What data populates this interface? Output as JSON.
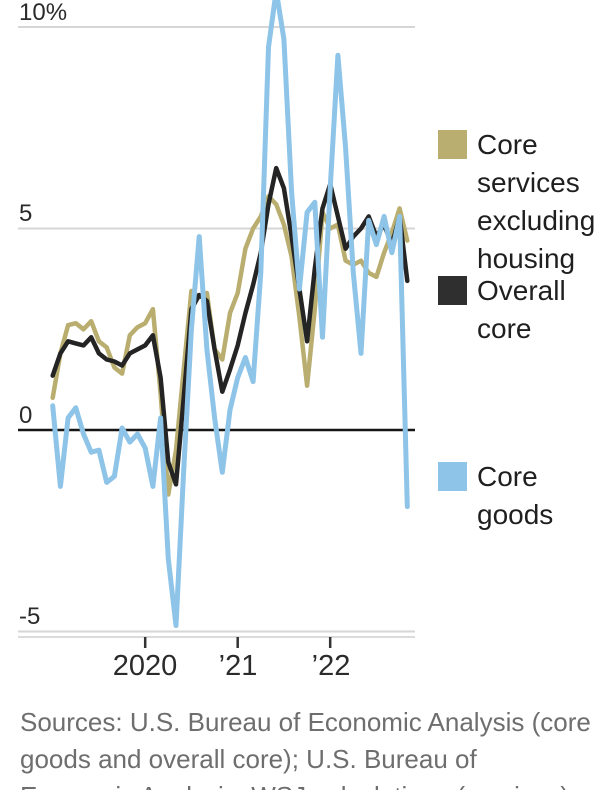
{
  "chart_data": {
    "type": "line",
    "title": "",
    "ylabel": "",
    "xlabel": "",
    "unit": "percent",
    "grid": "horizontal",
    "legend_position": "right",
    "ylim": [
      -5.2,
      10.7
    ],
    "months": [
      "Jan 2019",
      "Feb 2019",
      "Mar 2019",
      "Apr 2019",
      "May 2019",
      "Jun 2019",
      "Jul 2019",
      "Aug 2019",
      "Sep 2019",
      "Oct 2019",
      "Nov 2019",
      "Dec 2019",
      "Jan 2020",
      "Feb 2020",
      "Mar 2020",
      "Apr 2020",
      "May 2020",
      "Jun 2020",
      "Jul 2020",
      "Aug 2020",
      "Sep 2020",
      "Oct 2020",
      "Nov 2020",
      "Dec 2020",
      "Jan 2021",
      "Feb 2021",
      "Mar 2021",
      "Apr 2021",
      "May 2021",
      "Jun 2021",
      "Jul 2021",
      "Aug 2021",
      "Sep 2021",
      "Oct 2021",
      "Nov 2021",
      "Dec 2021",
      "Jan 2022",
      "Feb 2022",
      "Mar 2022",
      "Apr 2022",
      "May 2022",
      "Jun 2022",
      "Jul 2022",
      "Aug 2022",
      "Sep 2022",
      "Oct 2022",
      "Nov 2022"
    ],
    "series": [
      {
        "name": "Core services excluding housing",
        "color": "#b9ae6f",
        "stroke_width": 4.5,
        "values": [
          0.8,
          1.9,
          2.6,
          2.65,
          2.5,
          2.7,
          2.2,
          2.05,
          1.55,
          1.4,
          2.35,
          2.55,
          2.65,
          3.0,
          0.9,
          -1.6,
          -0.5,
          1.5,
          3.45,
          3.3,
          3.4,
          2.0,
          1.75,
          2.9,
          3.4,
          4.5,
          5.0,
          5.3,
          5.8,
          5.6,
          5.1,
          4.3,
          2.8,
          1.1,
          3.0,
          5.4,
          5.0,
          5.1,
          4.2,
          4.1,
          4.2,
          3.9,
          3.8,
          4.4,
          4.9,
          5.5,
          4.7
        ]
      },
      {
        "name": "Overall core",
        "color": "#242424",
        "stroke_width": 4.5,
        "values": [
          1.35,
          1.9,
          2.2,
          2.15,
          2.1,
          2.3,
          1.9,
          1.75,
          1.7,
          1.6,
          1.9,
          2.0,
          2.1,
          2.35,
          1.3,
          -0.8,
          -1.35,
          0.8,
          3.0,
          3.35,
          3.2,
          2.0,
          0.95,
          1.5,
          2.1,
          2.9,
          3.6,
          4.4,
          5.6,
          6.5,
          6.0,
          4.8,
          3.5,
          2.2,
          4.0,
          5.5,
          6.1,
          5.3,
          4.5,
          4.8,
          5.0,
          5.3,
          4.8,
          5.1,
          4.6,
          5.3,
          3.7
        ]
      },
      {
        "name": "Core goods",
        "color": "#8dc4e8",
        "stroke_width": 5,
        "values": [
          0.6,
          -1.4,
          0.3,
          0.55,
          -0.1,
          -0.55,
          -0.5,
          -1.3,
          -1.15,
          0.05,
          -0.3,
          -0.1,
          -0.45,
          -1.4,
          0.3,
          -3.2,
          -4.85,
          -1.0,
          2.5,
          4.8,
          2.0,
          0.3,
          -1.05,
          0.5,
          1.3,
          1.8,
          1.2,
          3.9,
          9.5,
          10.9,
          9.7,
          5.9,
          3.5,
          5.4,
          5.65,
          2.3,
          6.0,
          9.3,
          7.0,
          3.9,
          1.9,
          5.2,
          4.6,
          5.3,
          4.4,
          5.3,
          -1.9
        ]
      }
    ],
    "yticks": [
      {
        "label": "10%",
        "value": 10
      },
      {
        "label": "5",
        "value": 5
      },
      {
        "label": "0",
        "value": 0
      },
      {
        "label": "-5",
        "value": -5
      }
    ],
    "xticks": [
      {
        "label": "2020",
        "month_index": 12
      },
      {
        "label": "’21",
        "month_index": 24
      },
      {
        "label": "’22",
        "month_index": 36
      }
    ]
  },
  "legend": {
    "items": [
      {
        "label": "Core services excluding housing",
        "color": "#b9ae6f"
      },
      {
        "label": "Overall core",
        "color": "#2f2f2f"
      },
      {
        "label": "Core goods",
        "color": "#8dc4e8"
      }
    ]
  },
  "colors": {
    "gridline": "#d6d6d6",
    "zero_line": "#161616",
    "axis_line": "#cfcfcf",
    "tick": "#333333"
  },
  "source_note": "Sources: U.S. Bureau of Economic Analysis (core goods and overall core); U.S. Bureau of Economic Analysis, WSJ calculations (services)"
}
